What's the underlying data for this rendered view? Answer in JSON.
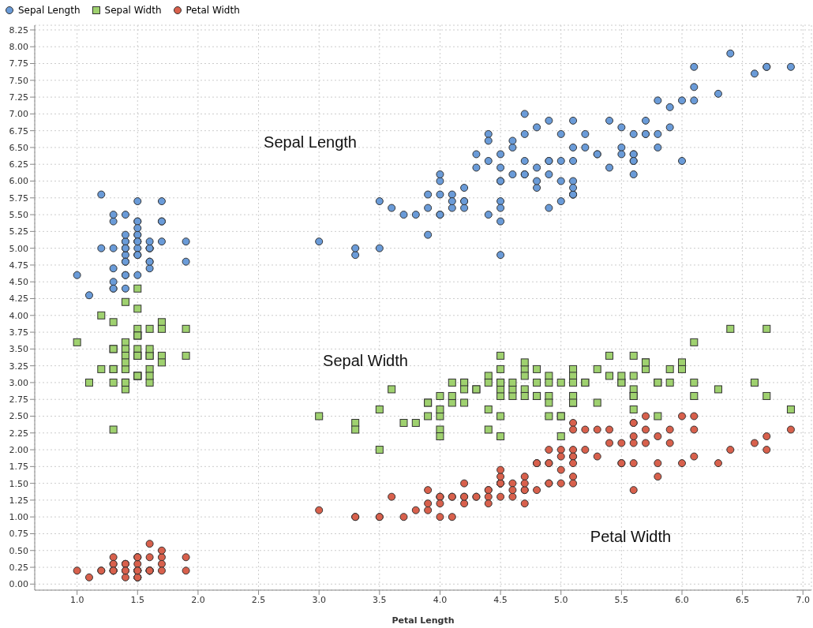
{
  "chart_data": {
    "type": "scatter",
    "xlabel": "Petal Length",
    "x": [
      1.4,
      1.4,
      1.3,
      1.5,
      1.4,
      1.7,
      1.4,
      1.5,
      1.4,
      1.5,
      1.5,
      1.6,
      1.4,
      1.1,
      1.2,
      1.5,
      1.3,
      1.4,
      1.7,
      1.5,
      1.7,
      1.5,
      1.0,
      1.7,
      1.9,
      1.6,
      1.6,
      1.5,
      1.4,
      1.6,
      1.6,
      1.5,
      1.5,
      1.4,
      1.5,
      1.2,
      1.3,
      1.5,
      1.3,
      1.5,
      1.3,
      1.3,
      1.3,
      1.6,
      1.9,
      1.4,
      1.6,
      1.4,
      1.5,
      1.4,
      4.7,
      4.5,
      4.9,
      4.0,
      4.6,
      4.5,
      4.7,
      3.3,
      4.6,
      3.9,
      3.5,
      4.2,
      4.0,
      4.7,
      3.6,
      4.4,
      4.5,
      4.1,
      4.5,
      3.9,
      4.8,
      4.0,
      4.9,
      4.7,
      4.3,
      4.4,
      4.8,
      5.0,
      4.5,
      3.5,
      3.8,
      3.7,
      3.9,
      5.1,
      4.5,
      4.5,
      4.7,
      4.4,
      4.1,
      4.0,
      4.4,
      4.6,
      4.0,
      3.3,
      4.2,
      4.2,
      4.2,
      4.3,
      3.0,
      4.1,
      6.0,
      5.1,
      5.9,
      5.6,
      5.8,
      6.6,
      4.5,
      6.3,
      5.8,
      6.1,
      5.1,
      5.3,
      5.5,
      5.0,
      5.1,
      5.3,
      5.5,
      6.7,
      6.9,
      5.0,
      5.7,
      4.9,
      6.7,
      4.9,
      5.7,
      6.0,
      4.8,
      4.9,
      5.6,
      5.8,
      6.1,
      6.4,
      5.6,
      5.1,
      5.6,
      6.1,
      5.6,
      5.5,
      4.8,
      5.4,
      5.6,
      5.1,
      5.1,
      5.9,
      5.7,
      5.2,
      5.0,
      5.2,
      5.4,
      5.1
    ],
    "series": [
      {
        "name": "Sepal Length",
        "color": "#6a9bd8",
        "marker": "circle",
        "values": [
          5.1,
          4.9,
          4.7,
          4.6,
          5.0,
          5.4,
          4.6,
          5.0,
          4.4,
          4.9,
          5.4,
          4.8,
          4.8,
          4.3,
          5.8,
          5.7,
          5.4,
          5.1,
          5.7,
          5.1,
          5.4,
          5.1,
          4.6,
          5.1,
          4.8,
          5.0,
          5.0,
          5.2,
          5.2,
          4.7,
          4.8,
          5.4,
          5.2,
          5.5,
          4.9,
          5.0,
          5.5,
          4.9,
          4.4,
          5.1,
          5.0,
          4.5,
          4.4,
          5.0,
          5.1,
          4.8,
          5.1,
          4.6,
          5.3,
          5.0,
          7.0,
          6.4,
          6.9,
          5.5,
          6.5,
          5.7,
          6.3,
          4.9,
          6.6,
          5.2,
          5.0,
          5.9,
          6.0,
          6.1,
          5.6,
          6.7,
          5.6,
          5.8,
          6.2,
          5.6,
          5.9,
          6.1,
          6.3,
          6.1,
          6.4,
          6.6,
          6.8,
          6.7,
          6.0,
          5.7,
          5.5,
          5.5,
          5.8,
          6.0,
          5.4,
          6.0,
          6.7,
          6.3,
          5.6,
          5.5,
          5.5,
          6.1,
          5.8,
          5.0,
          5.6,
          5.7,
          5.7,
          6.2,
          5.1,
          5.7,
          6.3,
          5.8,
          7.1,
          6.3,
          6.5,
          7.6,
          4.9,
          7.3,
          6.7,
          7.2,
          6.5,
          6.4,
          6.8,
          5.7,
          5.8,
          6.4,
          6.5,
          7.7,
          7.7,
          6.0,
          6.9,
          5.6,
          7.7,
          6.3,
          6.7,
          7.2,
          6.2,
          6.1,
          6.4,
          7.2,
          7.4,
          7.9,
          6.4,
          6.3,
          6.1,
          7.7,
          6.3,
          6.4,
          6.0,
          6.9,
          6.7,
          6.9,
          5.8,
          6.8,
          6.7,
          6.7,
          6.3,
          6.5,
          6.2,
          5.9
        ]
      },
      {
        "name": "Sepal Width",
        "color": "#9fd16f",
        "marker": "square",
        "values": [
          3.5,
          3.0,
          3.2,
          3.1,
          3.6,
          3.9,
          3.4,
          3.4,
          2.9,
          3.1,
          3.7,
          3.4,
          3.0,
          3.0,
          4.0,
          4.4,
          3.9,
          3.5,
          3.8,
          3.8,
          3.4,
          3.7,
          3.6,
          3.3,
          3.4,
          3.0,
          3.4,
          3.5,
          3.4,
          3.2,
          3.1,
          3.4,
          4.1,
          4.2,
          3.1,
          3.2,
          3.5,
          3.1,
          3.0,
          3.4,
          3.5,
          2.3,
          3.2,
          3.5,
          3.8,
          3.0,
          3.8,
          3.2,
          3.7,
          3.3,
          3.2,
          3.2,
          3.1,
          2.3,
          2.8,
          2.8,
          3.3,
          2.4,
          2.9,
          2.7,
          2.0,
          3.0,
          2.2,
          2.9,
          2.9,
          3.1,
          3.0,
          2.7,
          2.2,
          2.5,
          3.2,
          2.8,
          2.5,
          2.8,
          2.9,
          3.0,
          2.8,
          3.0,
          2.9,
          2.6,
          2.4,
          2.4,
          2.7,
          2.7,
          3.0,
          3.4,
          3.1,
          2.3,
          3.0,
          2.5,
          2.6,
          3.0,
          2.6,
          2.3,
          2.7,
          3.0,
          2.9,
          2.9,
          2.5,
          2.8,
          3.3,
          2.7,
          3.0,
          2.9,
          3.0,
          3.0,
          2.5,
          2.9,
          2.5,
          3.6,
          3.2,
          2.7,
          3.0,
          2.5,
          2.8,
          3.2,
          3.0,
          3.8,
          2.6,
          2.2,
          3.2,
          2.8,
          2.8,
          2.7,
          3.3,
          3.2,
          2.8,
          3.0,
          2.8,
          3.0,
          2.8,
          3.8,
          2.8,
          2.8,
          2.6,
          3.0,
          3.4,
          3.1,
          3.0,
          3.1,
          3.1,
          3.1,
          2.7,
          3.2,
          3.3,
          3.0,
          2.5,
          3.0,
          3.4,
          3.0
        ]
      },
      {
        "name": "Petal Width",
        "color": "#d8604c",
        "marker": "circle",
        "values": [
          null,
          null,
          0.2,
          0.2,
          null,
          0.4,
          0.3,
          0.2,
          null,
          0.1,
          0.2,
          0.2,
          0.1,
          0.1,
          0.2,
          0.4,
          0.4,
          0.3,
          0.3,
          0.3,
          0.2,
          0.4,
          0.2,
          0.5,
          0.2,
          0.2,
          0.4,
          0.2,
          null,
          0.2,
          0.2,
          0.4,
          0.1,
          null,
          0.1,
          0.2,
          0.2,
          0.1,
          0.2,
          0.2,
          0.3,
          0.3,
          0.2,
          0.6,
          0.4,
          0.3,
          0.2,
          0.2,
          0.2,
          0.2,
          1.4,
          1.5,
          1.5,
          1.3,
          1.5,
          1.3,
          1.6,
          1.0,
          1.3,
          1.4,
          1.0,
          1.5,
          1.0,
          1.4,
          1.3,
          1.4,
          1.5,
          1.0,
          1.5,
          1.1,
          1.8,
          1.3,
          1.5,
          1.2,
          1.3,
          1.4,
          1.4,
          1.7,
          1.5,
          1.0,
          1.1,
          1.0,
          1.2,
          1.6,
          1.5,
          1.6,
          1.5,
          1.3,
          1.3,
          1.3,
          1.2,
          1.4,
          1.2,
          1.0,
          1.3,
          1.2,
          1.3,
          1.3,
          1.1,
          1.3,
          2.5,
          1.9,
          2.1,
          1.8,
          2.2,
          2.1,
          1.7,
          1.8,
          1.8,
          2.5,
          2.0,
          1.9,
          2.1,
          2.0,
          2.4,
          2.3,
          1.8,
          2.2,
          2.3,
          1.5,
          2.3,
          2.0,
          2.0,
          1.8,
          2.1,
          1.8,
          1.8,
          1.8,
          2.1,
          1.6,
          1.9,
          2.0,
          2.2,
          1.5,
          1.4,
          2.3,
          2.4,
          1.8,
          1.8,
          2.1,
          2.4,
          2.3,
          1.9,
          2.3,
          2.5,
          2.3,
          1.9,
          2.0,
          2.3,
          1.8
        ]
      }
    ],
    "annotations": [
      "Sepal Length",
      "Sepal Width",
      "Petal Width"
    ],
    "xlim": [
      0.65,
      7.07
    ],
    "xticks": [
      {
        "value": 1,
        "label": "1.0"
      },
      {
        "value": 1.5,
        "label": "1.5"
      },
      {
        "value": 2,
        "label": "2.0"
      },
      {
        "value": 2.5,
        "label": "2.5"
      },
      {
        "value": 3,
        "label": "3.0"
      },
      {
        "value": 3.5,
        "label": "3.5"
      },
      {
        "value": 4,
        "label": "4.0"
      },
      {
        "value": 4.5,
        "label": "4.5"
      },
      {
        "value": 5,
        "label": "5.0"
      },
      {
        "value": 5.5,
        "label": "5.5"
      },
      {
        "value": 6,
        "label": "6.0"
      },
      {
        "value": 6.5,
        "label": "6.5"
      },
      {
        "value": 7,
        "label": "7.0"
      }
    ],
    "ylim": [
      -0.09,
      8.32
    ],
    "yticks": [
      {
        "value": 0,
        "label": "0.00"
      },
      {
        "value": 0.25,
        "label": "0.25"
      },
      {
        "value": 0.5,
        "label": "0.50"
      },
      {
        "value": 0.75,
        "label": "0.75"
      },
      {
        "value": 1,
        "label": "1.00"
      },
      {
        "value": 1.25,
        "label": "1.25"
      },
      {
        "value": 1.5,
        "label": "1.50"
      },
      {
        "value": 1.75,
        "label": "1.75"
      },
      {
        "value": 2,
        "label": "2.00"
      },
      {
        "value": 2.25,
        "label": "2.25"
      },
      {
        "value": 2.5,
        "label": "2.50"
      },
      {
        "value": 2.75,
        "label": "2.75"
      },
      {
        "value": 3,
        "label": "3.00"
      },
      {
        "value": 3.25,
        "label": "3.25"
      },
      {
        "value": 3.5,
        "label": "3.50"
      },
      {
        "value": 3.75,
        "label": "3.75"
      },
      {
        "value": 4,
        "label": "4.00"
      },
      {
        "value": 4.25,
        "label": "4.25"
      },
      {
        "value": 4.5,
        "label": "4.50"
      },
      {
        "value": 4.75,
        "label": "4.75"
      },
      {
        "value": 5,
        "label": "5.00"
      },
      {
        "value": 5.25,
        "label": "5.25"
      },
      {
        "value": 5.5,
        "label": "5.50"
      },
      {
        "value": 5.75,
        "label": "5.75"
      },
      {
        "value": 6,
        "label": "6.00"
      },
      {
        "value": 6.25,
        "label": "6.25"
      },
      {
        "value": 6.5,
        "label": "6.50"
      },
      {
        "value": 6.75,
        "label": "6.75"
      },
      {
        "value": 7,
        "label": "7.00"
      },
      {
        "value": 7.25,
        "label": "7.25"
      },
      {
        "value": 7.5,
        "label": "7.50"
      },
      {
        "value": 7.75,
        "label": "7.75"
      },
      {
        "value": 8,
        "label": "8.00"
      },
      {
        "value": 8.25,
        "label": "8.25"
      }
    ],
    "grid": true,
    "legend": "top left"
  }
}
